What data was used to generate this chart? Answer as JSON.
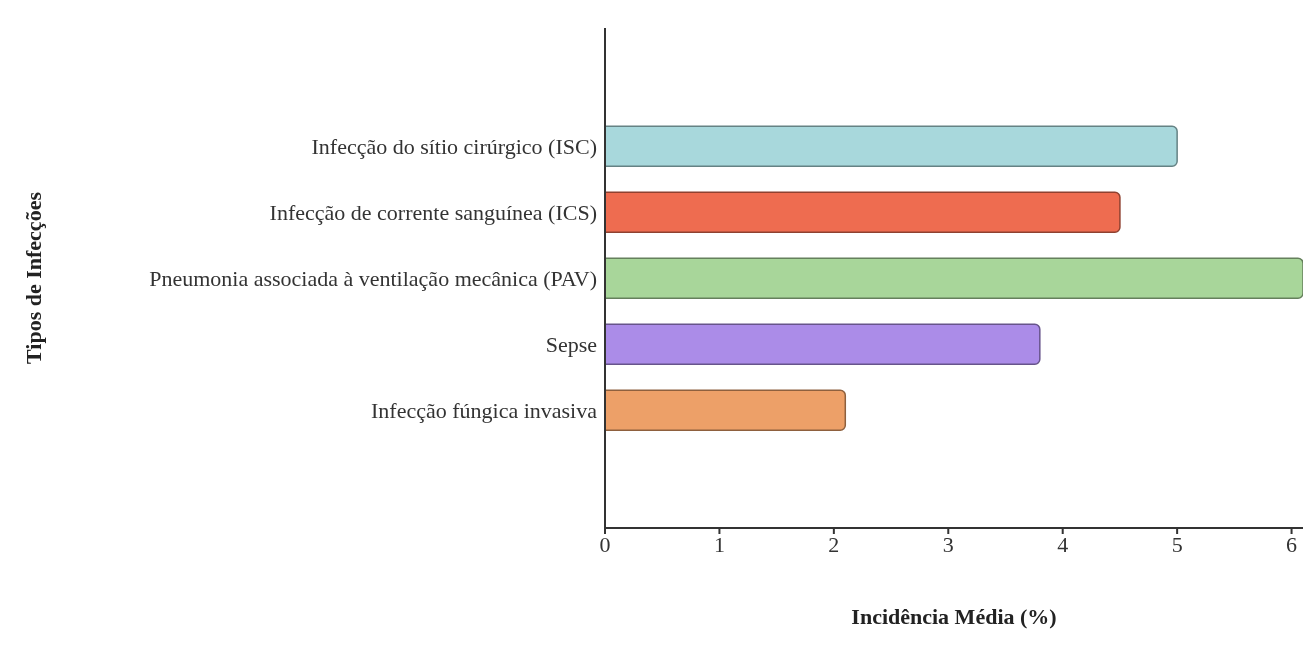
{
  "chart_data": {
    "type": "bar",
    "orientation": "horizontal",
    "xlabel": "Incidência Média (%)",
    "ylabel": "Tipos de Infecções",
    "categories": [
      "Infecção do sítio cirúrgico (ISC)",
      "Infecção de corrente sanguínea (ICS)",
      "Pneumonia associada à ventilação mecânica (PAV)",
      "Sepse",
      "Infecção fúngica invasiva"
    ],
    "values": [
      5.0,
      4.5,
      6.1,
      3.8,
      2.1
    ],
    "colors": [
      "#a8d8dc",
      "#ee6c50",
      "#a8d69a",
      "#ab8ce8",
      "#eda068"
    ],
    "xlim": [
      0,
      6.1
    ],
    "xticks": [
      0,
      1,
      2,
      3,
      4,
      5,
      6
    ],
    "grid": false
  }
}
